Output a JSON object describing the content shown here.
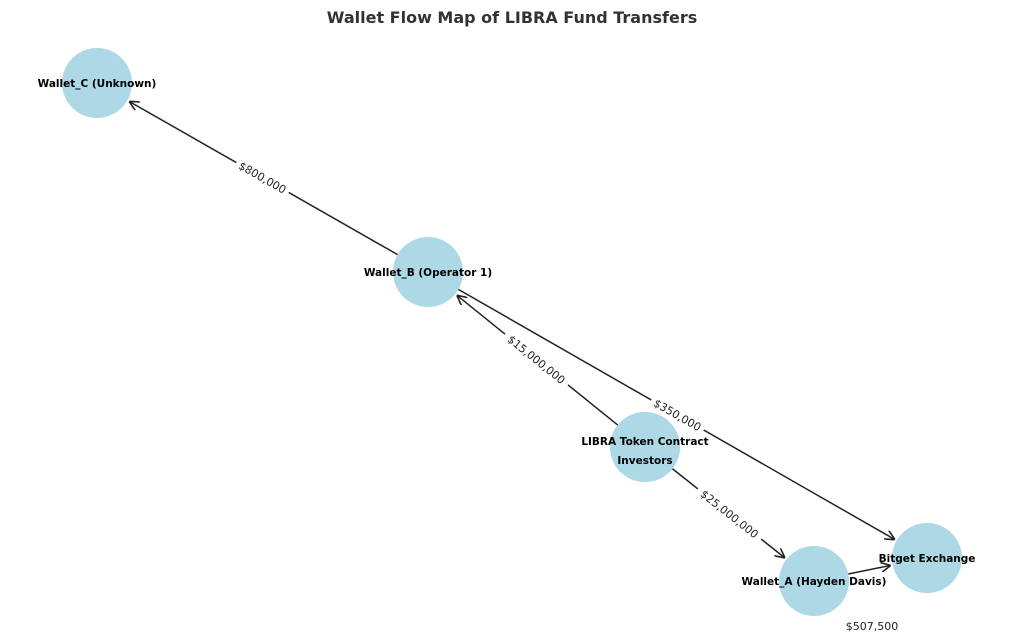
{
  "title": "Wallet Flow Map of LIBRA Fund Transfers",
  "colors": {
    "node": "#add8e6",
    "edge": "#222222",
    "title": "#333333"
  },
  "nodes": [
    {
      "id": "Wallet_C (Unknown)"
    },
    {
      "id": "Wallet_B (Operator 1)"
    },
    {
      "id": "Investors"
    },
    {
      "id": "LIBRA Token Contract"
    },
    {
      "id": "Wallet_A (Hayden Davis)"
    },
    {
      "id": "Bitget Exchange"
    }
  ],
  "edges": [
    {
      "source": "Wallet_B (Operator 1)",
      "target": "Wallet_C (Unknown)",
      "label": "$800,000"
    },
    {
      "source": "LIBRA Token Contract",
      "target": "Wallet_B (Operator 1)",
      "label": "$15,000,000"
    },
    {
      "source": "Wallet_B (Operator 1)",
      "target": "Bitget Exchange",
      "label": "$350,000"
    },
    {
      "source": "LIBRA Token Contract",
      "target": "Wallet_A (Hayden Davis)",
      "label": "$25,000,000"
    },
    {
      "source": "Wallet_A (Hayden Davis)",
      "target": "Bitget Exchange",
      "label": "$507,500"
    }
  ]
}
